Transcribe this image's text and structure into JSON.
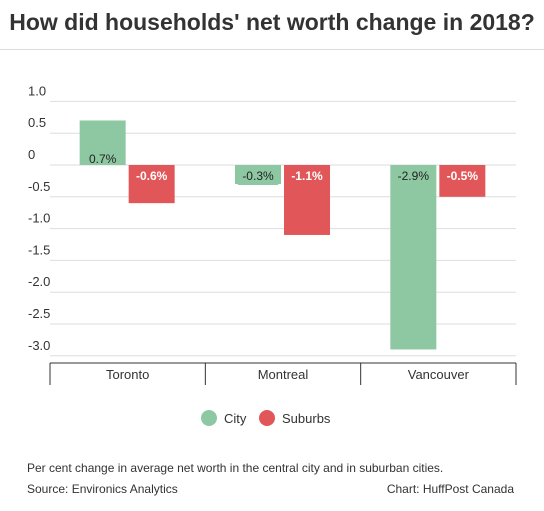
{
  "title": "How did households' net worth change in 2018?",
  "footer": {
    "note": "Per cent change in average net worth in the central city and in suburban cities.",
    "source": "Source: Environics Analytics",
    "credit": "Chart: HuffPost Canada"
  },
  "colors": {
    "city": "#8dc8a3",
    "suburbs": "#e15759",
    "label_bg_city": "#8dc8a3",
    "label_bg_suburbs": "#e15759"
  },
  "chart_data": {
    "type": "bar",
    "title": "How did households' net worth change in 2018?",
    "categories": [
      "Toronto",
      "Montreal",
      "Vancouver"
    ],
    "series": [
      {
        "name": "City",
        "values": [
          0.7,
          -0.3,
          -2.9
        ],
        "labels": [
          "0.7%",
          "-0.3%",
          "-2.9%"
        ]
      },
      {
        "name": "Suburbs",
        "values": [
          -0.6,
          -1.1,
          -0.5
        ],
        "labels": [
          "-0.6%",
          "-1.1%",
          "-0.5%"
        ]
      }
    ],
    "yticks": [
      1.0,
      0.5,
      0,
      -0.5,
      -1.0,
      -1.5,
      -2.0,
      -2.5,
      -3.0
    ],
    "ytick_labels": [
      "1.0",
      "0.5",
      "0",
      "-0.5",
      "-1.0",
      "-1.5",
      "-2.0",
      "-2.5",
      "-3.0"
    ],
    "ylim": [
      -3.1,
      1.1
    ],
    "grid": true,
    "legend_position": "bottom-center"
  }
}
